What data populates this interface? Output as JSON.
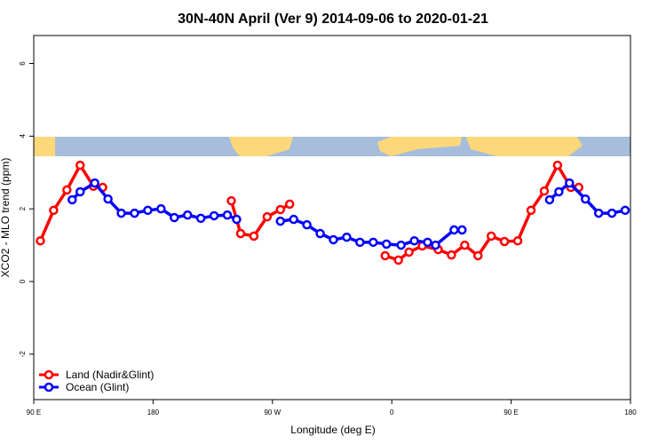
{
  "chart_data": {
    "type": "line",
    "title": "30N-40N April (Ver 9)   2014-09-06 to 2020-01-21",
    "x_label": "Longitude (deg E)",
    "y_label": "XCO2 - MLO trend (ppm)",
    "xlim": [
      90,
      540
    ],
    "xticks": [
      {
        "value": 90,
        "label": "90 E"
      },
      180,
      {
        "value": 270,
        "label": "90 W"
      },
      {
        "value": 360,
        "label": "0"
      },
      {
        "value": 450,
        "label": "90 E"
      },
      {
        "value": 540,
        "label": "180"
      }
    ],
    "ylim": [
      -3.25,
      6.77
    ],
    "yticks": [
      -2,
      0,
      2,
      4,
      6
    ],
    "legend": "bottom-left",
    "series": [
      {
        "name": "Land (Nadir&Glint)",
        "color": "#ff0000",
        "x": [
          95,
          105,
          115,
          125,
          135,
          142,
          null,
          239,
          246,
          256,
          266,
          276,
          283,
          null,
          355,
          365,
          373,
          383,
          395,
          405,
          415,
          425,
          435,
          445,
          455,
          465,
          475,
          485,
          495,
          501
        ],
        "values": [
          1.12,
          1.96,
          2.52,
          3.2,
          2.62,
          2.59,
          null,
          2.22,
          1.32,
          1.25,
          1.78,
          1.98,
          2.13,
          null,
          0.71,
          0.59,
          0.81,
          0.98,
          0.88,
          0.73,
          1.0,
          0.71,
          1.25,
          1.1,
          1.12,
          1.96,
          2.49,
          3.2,
          2.59,
          2.59
        ]
      },
      {
        "name": "Ocean (Glint)",
        "color": "#0000ff",
        "x": [
          119,
          125,
          136,
          146,
          156,
          166,
          176,
          186,
          196,
          206,
          216,
          226,
          236,
          243,
          null,
          276,
          286,
          296,
          306,
          316,
          326,
          336,
          346,
          356,
          367,
          377,
          387,
          393,
          407,
          413,
          null,
          479,
          486,
          494,
          506,
          516,
          526,
          536
        ],
        "values": [
          2.25,
          2.47,
          2.71,
          2.27,
          1.88,
          1.88,
          1.96,
          2.0,
          1.76,
          1.83,
          1.74,
          1.81,
          1.83,
          1.71,
          null,
          1.66,
          1.71,
          1.56,
          1.32,
          1.15,
          1.22,
          1.08,
          1.08,
          1.03,
          1.0,
          1.12,
          1.08,
          1.0,
          1.42,
          1.42,
          null,
          2.25,
          2.47,
          2.71,
          2.27,
          1.88,
          1.88,
          1.96
        ]
      }
    ]
  }
}
